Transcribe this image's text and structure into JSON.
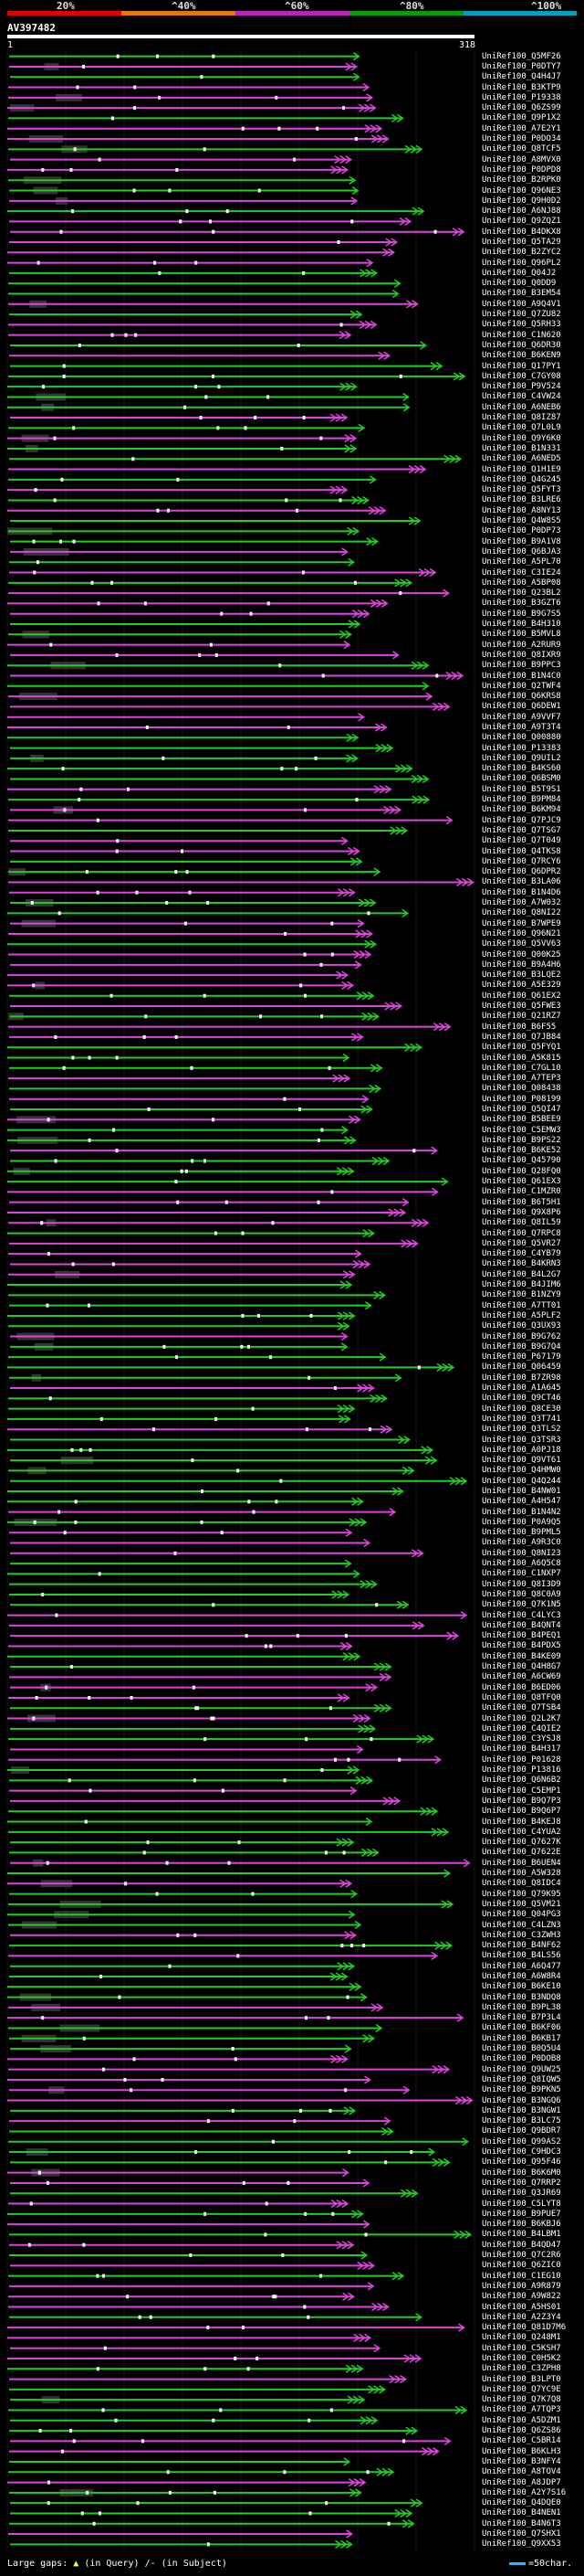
{
  "legend": {
    "labels": [
      "20%",
      "^40%",
      "^60%",
      "^80%",
      "^100%"
    ],
    "colors": [
      "#e00000",
      "#e07a00",
      "#c020c0",
      "#00a000",
      "#00a0c0"
    ]
  },
  "query": {
    "id": "AV397482",
    "start": "1",
    "end": "318",
    "length": 318
  },
  "hits": [
    "Q5MF26",
    "P0DTY7",
    "Q4H4J7",
    "B3KTP9",
    "P19338",
    "Q6ZS99",
    "Q9P1X2",
    "A7E2Y1",
    "P0DO34",
    "Q8TCF5",
    "A8MVX0",
    "P0DPD8",
    "B2RPK0",
    "Q96NE3",
    "Q9H0D2",
    "A6NJ88",
    "Q9ZQZ1",
    "B4DKX8",
    "Q5TA29",
    "B2ZYC2",
    "Q96PL2",
    "Q04J2",
    "Q0DD9",
    "B3EM54",
    "A9Q4V1",
    "Q7ZU82",
    "Q5RH33",
    "C1N620",
    "Q6DR30",
    "B6KEN9",
    "Q17PY1",
    "C7GY08",
    "P9V524",
    "C4VW24",
    "A6NEB6",
    "Q8IZ87",
    "Q7L0L9",
    "Q9Y6K0",
    "B1N331",
    "A6NED5",
    "Q1H1E9",
    "Q4G245",
    "Q5FYT3",
    "B3LRE6",
    "A8NY13",
    "Q4W8S5",
    "P0DP73",
    "B9A1V8",
    "Q6BJA3",
    "A5PL70",
    "C3IE24",
    "A5BP08",
    "Q23BL2",
    "B3GZT6",
    "B9G7S5",
    "B4H310",
    "B5MVL8",
    "A2RUR9",
    "Q8IXR9",
    "B9PPC3",
    "B1N4C0",
    "Q2TWF4",
    "Q6KRS8",
    "Q6DEW1",
    "A9VVF7",
    "A9T3T4",
    "Q00880",
    "P13383",
    "Q9UIL2",
    "B4KS60",
    "Q6BSM0",
    "B5T9S1",
    "B9PM84",
    "B6KM94",
    "Q7PJC9",
    "Q7TSG7",
    "Q7T049",
    "Q4TKS8",
    "Q7RCY6",
    "Q6DPR2",
    "B3LA06",
    "B1N4D6",
    "A7W032",
    "Q8NI22",
    "B7WPE9",
    "Q96N21",
    "Q5VV63",
    "Q00K25",
    "B9A4H6",
    "B3LQE2",
    "A5E329",
    "Q61EX2",
    "Q5FWE3",
    "Q21RZ7",
    "B6F55",
    "Q7JB84",
    "Q5FYQ1",
    "A5K815",
    "C7GL10",
    "A7TEP3",
    "Q08438",
    "P08199",
    "Q5QI47",
    "B5BEE9",
    "C5EMW3",
    "B9PS22",
    "B6KE52",
    "Q45790",
    "Q28FQ0",
    "Q61EX3",
    "C1MZR0",
    "B6T5H1",
    "Q9X8P6",
    "Q8IL59",
    "Q7RPC8",
    "Q5VR27",
    "C4YB79",
    "B4KRN3",
    "B4L2G7",
    "B4JIM6",
    "B1NZY9",
    "A7TT01",
    "A5PLF2",
    "Q3UX93",
    "B9G762",
    "B9G7Q4",
    "P67179",
    "Q06459",
    "B7ZR98",
    "A1A645",
    "Q9CT46",
    "Q8CE30",
    "Q3T741",
    "Q3TLS2",
    "Q3TSR3",
    "A0PJ18",
    "Q9VT61",
    "Q4HMW0",
    "Q4Q244",
    "B4NW01",
    "A4H547",
    "B1N4N2",
    "P0A9Q5",
    "B9PML5",
    "A9R3C0",
    "Q8NI23",
    "A6Q5C8",
    "C1NXP7",
    "Q8I3D9",
    "Q8C0A9",
    "Q7K1N5",
    "C4LYC3",
    "B4QNT4",
    "B4PEQ1",
    "B4PDX5",
    "B4KE09",
    "Q4H8G7",
    "A6CW69",
    "B6ED06",
    "Q8TFQ0",
    "Q7TSB4",
    "Q2L2K7",
    "C4QIE2",
    "C3YSJ8",
    "B4H317",
    "P01628",
    "P13816",
    "Q6N6B2",
    "C5EMP1",
    "B9Q7P3",
    "B9Q6P7",
    "B4KEJ8",
    "C4YUA2",
    "Q7627K",
    "Q7622E",
    "B6UEN4",
    "A5W328",
    "Q8IDC4",
    "Q79K95",
    "Q5VM21",
    "Q04PG3",
    "C4LZN3",
    "C3ZWH3",
    "B4NF62",
    "B4LS56",
    "A6Q477",
    "A6W8R4",
    "B6KE10",
    "B3NDQ8",
    "B9PL38",
    "B7P3L4",
    "B6KF06",
    "B6KB17",
    "B0Q5U4",
    "P0DOB8",
    "Q9UW25",
    "Q8IQW5",
    "B9PKN5",
    "B3NGQ6",
    "B3NGW1",
    "B3LC75",
    "Q9BDR7",
    "Q99AS2",
    "C9HDC3",
    "Q95F46",
    "B6K6M0",
    "Q7RRP2",
    "Q3JR69",
    "C5LYT8",
    "B9PUE7",
    "B6KBJ6",
    "B4LBM1",
    "B4QD47",
    "Q7C2R6",
    "Q6ZIC0",
    "C1EG10",
    "A9R879",
    "A9W822",
    "A5HS01",
    "A2Z3Y4",
    "Q81D7M6",
    "Q248M1",
    "C5KSH7",
    "C0H5K2",
    "C3ZPH8",
    "B3LPT0",
    "Q7YC9E",
    "Q7K7Q8",
    "A7TQP3",
    "A5DZM1",
    "Q6ZS86",
    "C5BR14",
    "B6KLH3",
    "B3NFY4",
    "A8TOV4",
    "A8JDP7",
    "A2Y7S16",
    "Q4DQE0",
    "B4NEN1",
    "B4N6T3",
    "Q7SHX1",
    "Q9XX53"
  ],
  "footer": {
    "prefix": "Large gaps:",
    "query_mark": "(in Query)",
    "subject_mark": "/- (in Subject)",
    "scale": "=50char."
  }
}
